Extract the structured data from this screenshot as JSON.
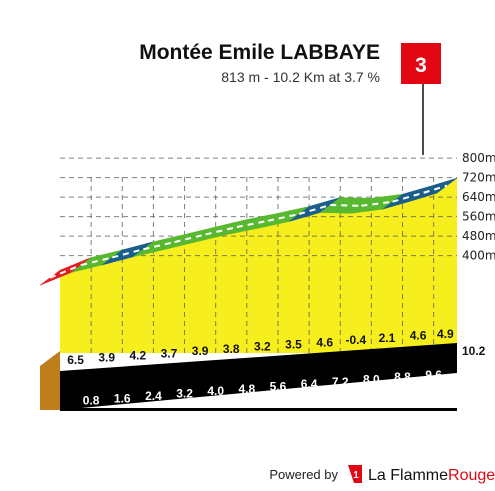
{
  "header": {
    "title": "Montée Emile LABBAYE",
    "subtitle": "813 m - 10.2 Km at 3.7 %",
    "category_badge": "3"
  },
  "footer": {
    "powered_by": "Powered by",
    "brand_prefix": "La Flamme",
    "brand_suffix": "Rouge",
    "brand_color": "#e30613"
  },
  "colors": {
    "very_steep": "#e31b23",
    "steep": "#1b5e8c",
    "moderate": "#58b82f",
    "wall_fill": "#f7ef1d",
    "base": "#c07d1c",
    "km_band": "#000000",
    "badge": "#e30613"
  },
  "chart_data": {
    "type": "area",
    "title": "Montée Emile LABBAYE",
    "subtitle": "813 m - 10.2 Km at 3.7 %",
    "xlabel": "",
    "ylabel": "",
    "y_ticks": [
      "400m",
      "480m",
      "560m",
      "640m",
      "720m",
      "800m"
    ],
    "y_tick_values": [
      400,
      480,
      560,
      640,
      720,
      800
    ],
    "ylim": [
      340,
      813
    ],
    "x_labels": [
      "0.8",
      "1.6",
      "2.4",
      "3.2",
      "4.0",
      "4.8",
      "5.6",
      "6.4",
      "7.2",
      "8.0",
      "8.8",
      "9.6"
    ],
    "x_end_label": "10.2",
    "segment_gradients": [
      "6.5",
      "3.9",
      "4.2",
      "3.7",
      "3.9",
      "3.8",
      "3.2",
      "3.5",
      "4.6",
      "-0.4",
      "2.1",
      "4.6",
      "4.9"
    ],
    "segments": [
      {
        "start_km": 0.0,
        "end_km": 0.8,
        "gradient": 6.5,
        "color": "very_steep"
      },
      {
        "start_km": 0.8,
        "end_km": 1.6,
        "gradient": 3.9,
        "color": "moderate"
      },
      {
        "start_km": 1.6,
        "end_km": 2.4,
        "gradient": 4.2,
        "color": "steep"
      },
      {
        "start_km": 2.4,
        "end_km": 3.2,
        "gradient": 3.7,
        "color": "moderate"
      },
      {
        "start_km": 3.2,
        "end_km": 4.0,
        "gradient": 3.9,
        "color": "moderate"
      },
      {
        "start_km": 4.0,
        "end_km": 4.8,
        "gradient": 3.8,
        "color": "moderate"
      },
      {
        "start_km": 4.8,
        "end_km": 5.6,
        "gradient": 3.2,
        "color": "moderate"
      },
      {
        "start_km": 5.6,
        "end_km": 6.4,
        "gradient": 3.5,
        "color": "moderate"
      },
      {
        "start_km": 6.4,
        "end_km": 7.2,
        "gradient": 4.6,
        "color": "steep"
      },
      {
        "start_km": 7.2,
        "end_km": 8.0,
        "gradient": -0.4,
        "color": "moderate"
      },
      {
        "start_km": 8.0,
        "end_km": 8.8,
        "gradient": 2.1,
        "color": "moderate"
      },
      {
        "start_km": 8.8,
        "end_km": 9.6,
        "gradient": 4.6,
        "color": "steep"
      },
      {
        "start_km": 9.6,
        "end_km": 10.2,
        "gradient": 4.9,
        "color": "steep"
      }
    ],
    "grid": true,
    "grid_style": "dashed"
  }
}
